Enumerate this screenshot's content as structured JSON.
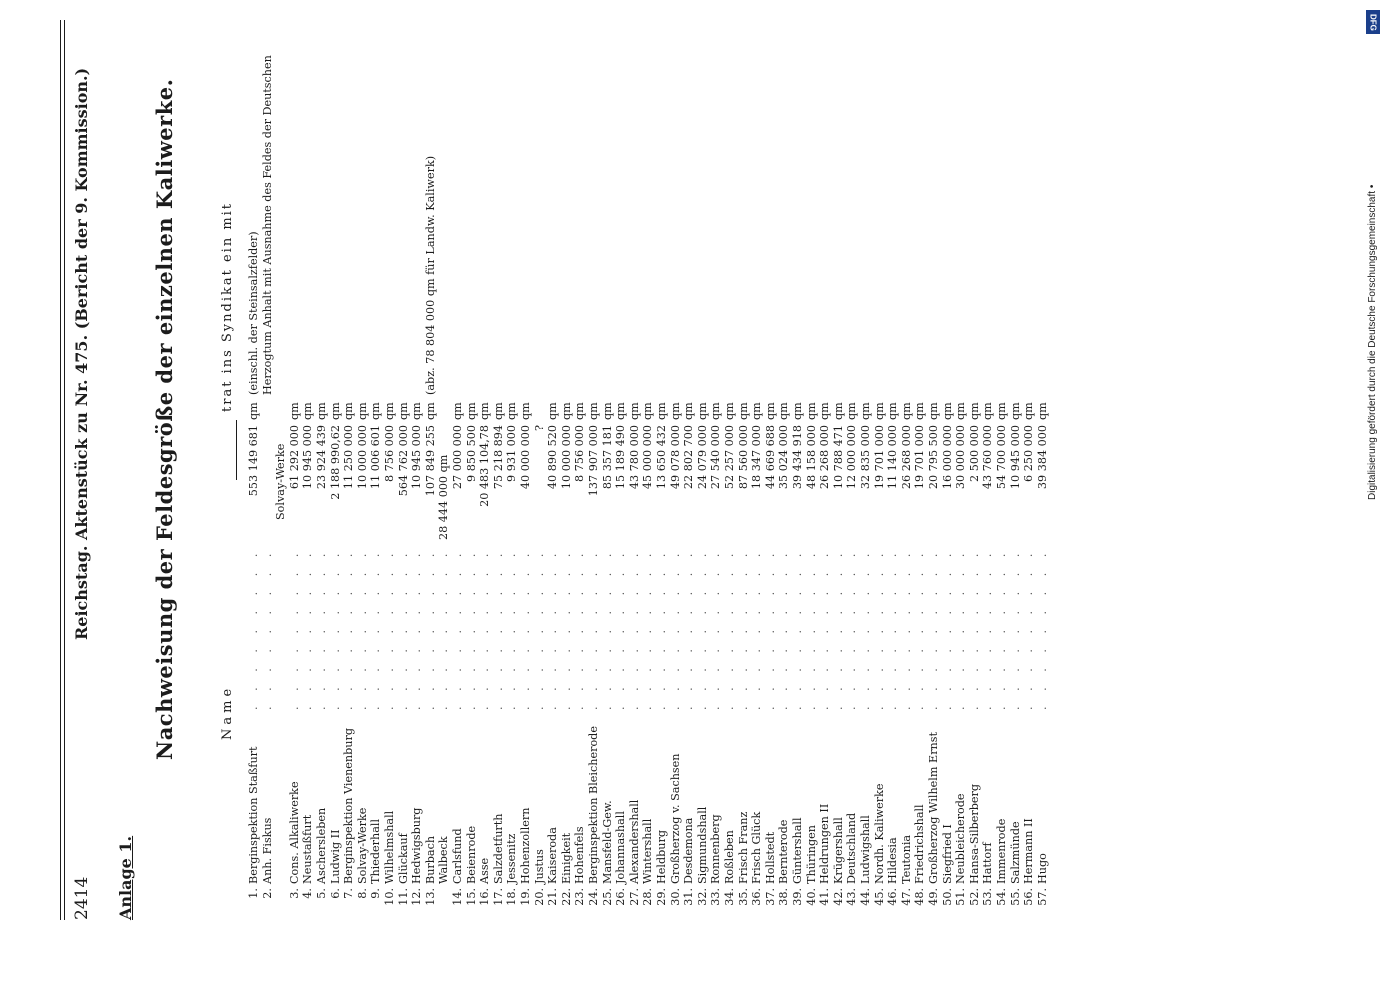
{
  "page": {
    "number": "2414",
    "header": "Reichstag.  Aktenstück zu Nr. 475.  (Bericht der 9. Kommission.)",
    "appendix_label": "Anlage 1.",
    "title": "Nachweisung der Feldesgröße der einzelnen Kaliwerke.",
    "name_heading": "Name",
    "syndicate_heading": "trat ins Syndikat ein mit"
  },
  "rows": [
    {
      "num": "1.",
      "name": "Berginspektion Staßfurt",
      "area": "553 149 681",
      "unit": "qm",
      "note": "(einschl. der Steinsalzfelder)"
    },
    {
      "num": "2.",
      "name": "Anh. Fiskus",
      "area": "",
      "unit": "",
      "note": "Herzogtum Anhalt mit Ausnahme des Feldes der Deutschen",
      "extra": "Solvay-Werke"
    },
    {
      "num": "3.",
      "name": "Cons. Alkaliwerke",
      "area": "61 292 000",
      "unit": "qm",
      "note": ""
    },
    {
      "num": "4.",
      "name": "Neustaßfurt",
      "area": "10 945 000",
      "unit": "qm",
      "note": ""
    },
    {
      "num": "5.",
      "name": "Aschersleben",
      "area": "23 924 439",
      "unit": "qm",
      "note": ""
    },
    {
      "num": "6.",
      "name": "Ludwig II",
      "area": "2 188 990,62",
      "unit": "qm",
      "note": ""
    },
    {
      "num": "7.",
      "name": "Berginspektion Vienenburg",
      "area": "11 250 000",
      "unit": "qm",
      "note": ""
    },
    {
      "num": "8.",
      "name": "Solvay-Werke",
      "area": "10 000 000",
      "unit": "qm",
      "note": ""
    },
    {
      "num": "9.",
      "name": "Thiederhall",
      "area": "11 006 601",
      "unit": "qm",
      "note": ""
    },
    {
      "num": "10.",
      "name": "Wilhelmshall",
      "area": "8 756 000",
      "unit": "qm",
      "note": ""
    },
    {
      "num": "11.",
      "name": "Glückauf",
      "area": "564 762 000",
      "unit": "qm",
      "note": ""
    },
    {
      "num": "12.",
      "name": "Hedwigsburg",
      "area": "10 945 000",
      "unit": "qm",
      "note": ""
    },
    {
      "num": "13.",
      "name": "Burbach",
      "area": "107 849 255",
      "unit": "qm",
      "note": "(abz. 78 804 000 qm für Landw. Kaliwerk)",
      "extra": "28 444 000  qm"
    },
    {
      "num": "",
      "name": "Walbeck",
      "area": "",
      "unit": "",
      "note": ""
    },
    {
      "num": "14.",
      "name": "Carlsfund",
      "area": "27 000 000",
      "unit": "qm",
      "note": ""
    },
    {
      "num": "15.",
      "name": "Beienrode",
      "area": "9 850 500",
      "unit": "qm",
      "note": ""
    },
    {
      "num": "16.",
      "name": "Asse",
      "area": "20 483 104,78",
      "unit": "qm",
      "note": ""
    },
    {
      "num": "17.",
      "name": "Salzdetfurth",
      "area": "75 218 894",
      "unit": "qm",
      "note": ""
    },
    {
      "num": "18.",
      "name": "Jessenitz",
      "area": "9 931 000",
      "unit": "qm",
      "note": ""
    },
    {
      "num": "19.",
      "name": "Hohenzollern",
      "area": "40 000 000",
      "unit": "qm",
      "note": ""
    },
    {
      "num": "20.",
      "name": "Justus",
      "area": "?",
      "unit": "",
      "note": ""
    },
    {
      "num": "21.",
      "name": "Kaiseroda",
      "area": "40 890 520",
      "unit": "qm",
      "note": ""
    },
    {
      "num": "22.",
      "name": "Einigkeit",
      "area": "10 000 000",
      "unit": "qm",
      "note": ""
    },
    {
      "num": "23.",
      "name": "Hohenfels",
      "area": "8 756 000",
      "unit": "qm",
      "note": ""
    },
    {
      "num": "24.",
      "name": "Berginspektion Bleicherode",
      "area": "137 907 000",
      "unit": "qm",
      "note": ""
    },
    {
      "num": "25.",
      "name": "Mansfeld-Gew.",
      "area": "85 357 181",
      "unit": "qm",
      "note": ""
    },
    {
      "num": "26.",
      "name": "Johannashall",
      "area": "15 189 490",
      "unit": "qm",
      "note": ""
    },
    {
      "num": "27.",
      "name": "Alexandershall",
      "area": "43 780 000",
      "unit": "qm",
      "note": ""
    },
    {
      "num": "28.",
      "name": "Wintershall",
      "area": "45 000 000",
      "unit": "qm",
      "note": ""
    },
    {
      "num": "29.",
      "name": "Heldburg",
      "area": "13 650 432",
      "unit": "qm",
      "note": ""
    },
    {
      "num": "30.",
      "name": "Großherzog v. Sachsen",
      "area": "49 078 000",
      "unit": "qm",
      "note": ""
    },
    {
      "num": "31.",
      "name": "Desdemona",
      "area": "22 802 700",
      "unit": "qm",
      "note": ""
    },
    {
      "num": "32.",
      "name": "Sigmundshall",
      "area": "24 079 000",
      "unit": "qm",
      "note": ""
    },
    {
      "num": "33.",
      "name": "Ronnenberg",
      "area": "27 540 000",
      "unit": "qm",
      "note": ""
    },
    {
      "num": "34.",
      "name": "Roßleben",
      "area": "52 257 000",
      "unit": "qm",
      "note": ""
    },
    {
      "num": "35.",
      "name": "Frisch Franz",
      "area": "87 560 000",
      "unit": "qm",
      "note": ""
    },
    {
      "num": "36.",
      "name": "Frisch Glück",
      "area": "18 347 000",
      "unit": "qm",
      "note": ""
    },
    {
      "num": "37.",
      "name": "Hollstedt",
      "area": "44 669 688",
      "unit": "qm",
      "note": ""
    },
    {
      "num": "38.",
      "name": "Bernterode",
      "area": "35 024 000",
      "unit": "qm",
      "note": ""
    },
    {
      "num": "39.",
      "name": "Güntershall",
      "area": "39 434 918",
      "unit": "qm",
      "note": ""
    },
    {
      "num": "40.",
      "name": "Thüringen",
      "area": "48 158 000",
      "unit": "qm",
      "note": ""
    },
    {
      "num": "41.",
      "name": "Heldrungen II",
      "area": "26 268 000",
      "unit": "qm",
      "note": ""
    },
    {
      "num": "42.",
      "name": "Krügershall",
      "area": "10 788 471",
      "unit": "qm",
      "note": ""
    },
    {
      "num": "43.",
      "name": "Deutschland",
      "area": "12 000 000",
      "unit": "qm",
      "note": ""
    },
    {
      "num": "44.",
      "name": "Ludwigshall",
      "area": "32 835 000",
      "unit": "qm",
      "note": ""
    },
    {
      "num": "45.",
      "name": "Nordh. Kaliwerke",
      "area": "19 701 000",
      "unit": "qm",
      "note": ""
    },
    {
      "num": "46.",
      "name": "Hildesia",
      "area": "11 140 000",
      "unit": "qm",
      "note": ""
    },
    {
      "num": "47.",
      "name": "Teutonia",
      "area": "26 268 000",
      "unit": "qm",
      "note": ""
    },
    {
      "num": "48.",
      "name": "Friedrichshall",
      "area": "19 701 000",
      "unit": "qm",
      "note": ""
    },
    {
      "num": "49.",
      "name": "Großherzog Wilhelm Ernst",
      "area": "20 795 500",
      "unit": "qm",
      "note": ""
    },
    {
      "num": "50.",
      "name": "Siegfried I",
      "area": "16 000 000",
      "unit": "qm",
      "note": ""
    },
    {
      "num": "51.",
      "name": "Neubleicherode",
      "area": "30 000 000",
      "unit": "qm",
      "note": ""
    },
    {
      "num": "52.",
      "name": "Hansa-Silberberg",
      "area": "2 500 000",
      "unit": "qm",
      "note": ""
    },
    {
      "num": "53.",
      "name": "Hattorf",
      "area": "43 760 000",
      "unit": "qm",
      "note": ""
    },
    {
      "num": "54.",
      "name": "Immenrode",
      "area": "54 700 000",
      "unit": "qm",
      "note": ""
    },
    {
      "num": "55.",
      "name": "Salzmünde",
      "area": "10 945 000",
      "unit": "qm",
      "note": ""
    },
    {
      "num": "56.",
      "name": "Hermann II",
      "area": "6 250 000",
      "unit": "qm",
      "note": ""
    },
    {
      "num": "57.",
      "name": "Hugo",
      "area": "39 384 000",
      "unit": "qm",
      "note": ""
    }
  ],
  "credit": "Digitalisierung gefördert durch die Deutsche Forschungsgemeinschaft •",
  "logo_text": "DFG"
}
